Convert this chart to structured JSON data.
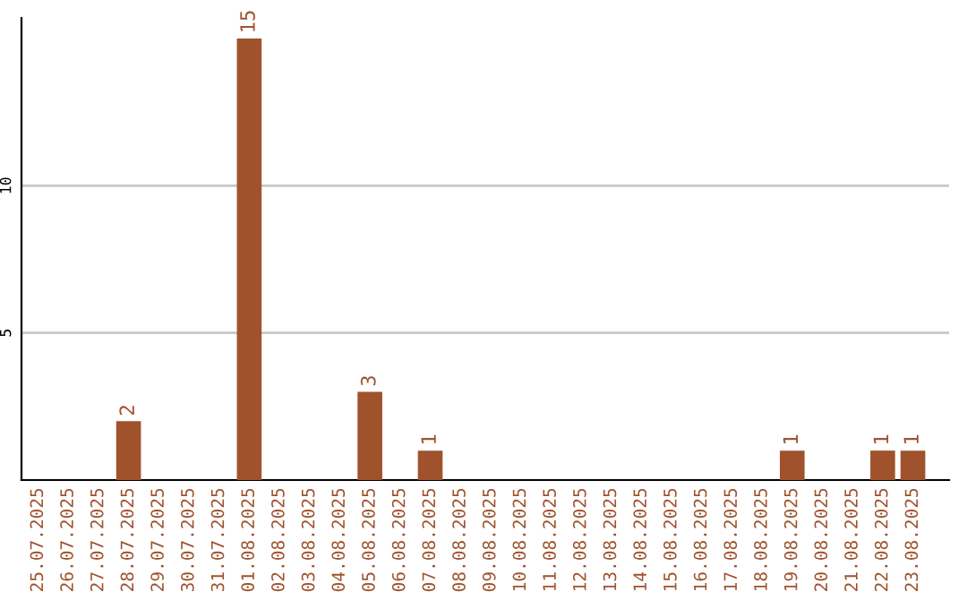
{
  "chart_data": {
    "type": "bar",
    "categories": [
      "25.07.2025",
      "26.07.2025",
      "27.07.2025",
      "28.07.2025",
      "29.07.2025",
      "30.07.2025",
      "31.07.2025",
      "01.08.2025",
      "02.08.2025",
      "03.08.2025",
      "04.08.2025",
      "05.08.2025",
      "06.08.2025",
      "07.08.2025",
      "08.08.2025",
      "09.08.2025",
      "10.08.2025",
      "11.08.2025",
      "12.08.2025",
      "13.08.2025",
      "14.08.2025",
      "15.08.2025",
      "16.08.2025",
      "17.08.2025",
      "18.08.2025",
      "19.08.2025",
      "20.08.2025",
      "21.08.2025",
      "22.08.2025",
      "23.08.2025"
    ],
    "values": [
      0,
      0,
      0,
      2,
      0,
      0,
      0,
      15,
      0,
      0,
      0,
      3,
      0,
      1,
      0,
      0,
      0,
      0,
      0,
      0,
      0,
      0,
      0,
      0,
      0,
      1,
      0,
      0,
      1,
      1
    ],
    "value_labels": [
      null,
      null,
      null,
      "2",
      null,
      null,
      null,
      "15",
      null,
      null,
      null,
      "3",
      null,
      "1",
      null,
      null,
      null,
      null,
      null,
      null,
      null,
      null,
      null,
      null,
      null,
      "1",
      null,
      null,
      "1",
      "1"
    ],
    "color": "#a0522d",
    "ylim": [
      0,
      15.7
    ],
    "yticks": [
      5,
      10
    ],
    "grid": "y",
    "legend": false
  }
}
